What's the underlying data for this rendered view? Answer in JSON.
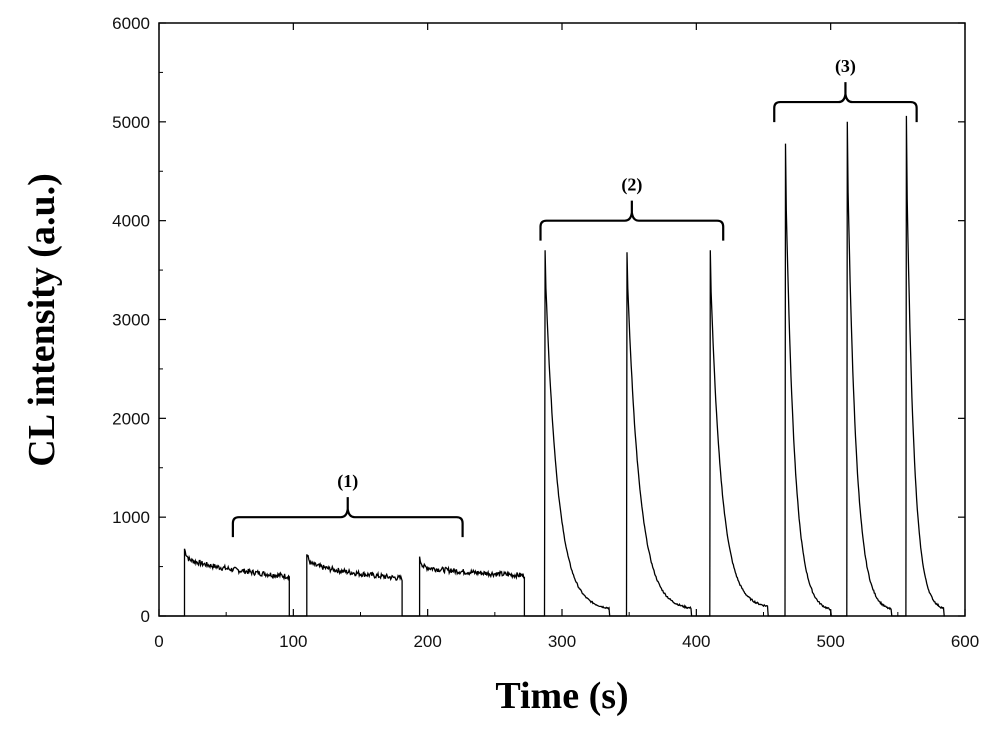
{
  "chart_data": {
    "type": "line",
    "xlabel": "Time (s)",
    "ylabel": "CL intensity (a.u.)",
    "xlim": [
      0,
      600
    ],
    "ylim": [
      0,
      6000
    ],
    "x_ticks": [
      0,
      100,
      200,
      300,
      400,
      500,
      600
    ],
    "y_ticks": [
      0,
      1000,
      2000,
      3000,
      4000,
      5000,
      6000
    ],
    "x_tick_labels": [
      "0",
      "100",
      "200",
      "300",
      "400",
      "500",
      "600"
    ],
    "y_tick_labels": [
      "0",
      "1000",
      "2000",
      "3000",
      "4000",
      "5000",
      "6000"
    ],
    "grid": false,
    "line_color": "#000000",
    "baseline": 0,
    "pulses": [
      {
        "type": "plateau",
        "start": 19,
        "end": 97,
        "peak": 620,
        "end_value": 400
      },
      {
        "type": "plateau",
        "start": 110,
        "end": 181,
        "peak": 570,
        "end_value": 380
      },
      {
        "type": "plateau",
        "start": 194,
        "end": 272,
        "peak": 520,
        "end_value": 410
      },
      {
        "type": "spike",
        "start": 287,
        "peak": 3700,
        "tail_end": 335,
        "end_value": 60
      },
      {
        "type": "spike",
        "start": 348,
        "peak": 3680,
        "tail_end": 396,
        "end_value": 60
      },
      {
        "type": "spike",
        "start": 410,
        "peak": 3700,
        "tail_end": 453,
        "end_value": 80
      },
      {
        "type": "spike",
        "start": 466,
        "peak": 4780,
        "tail_end": 500,
        "end_value": 40
      },
      {
        "type": "spike",
        "start": 512,
        "peak": 5000,
        "tail_end": 545,
        "end_value": 40
      },
      {
        "type": "spike",
        "start": 556,
        "peak": 5060,
        "tail_end": 584,
        "end_value": 50
      }
    ],
    "groups": [
      {
        "label": "(1)",
        "x_start": 55,
        "x_end": 226,
        "y": 1000
      },
      {
        "label": "(2)",
        "x_start": 284,
        "x_end": 420,
        "y": 4000
      },
      {
        "label": "(3)",
        "x_start": 458,
        "x_end": 564,
        "y": 5200
      }
    ]
  }
}
